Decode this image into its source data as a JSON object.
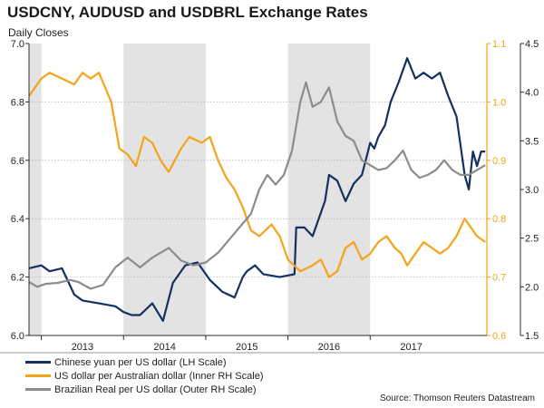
{
  "header": {
    "title": "USDCNY, AUDUSD and USDBRL Exchange Rates",
    "subtitle": "Daily Closes"
  },
  "source": "Source: Thomson Reuters Datastream",
  "colors": {
    "cny": "#14305e",
    "aud": "#f5a31a",
    "brl": "#8c8c8c",
    "shade": "#e3e3e3",
    "axis": "#2b2b2b",
    "right_inner_axis": "#f5a31a",
    "right_outer_axis": "#2b2b2b"
  },
  "chart_data": {
    "type": "line",
    "title": "USDCNY, AUDUSD and USDBRL Exchange Rates",
    "subtitle": "Daily Closes",
    "x_range": [
      2012.35,
      2017.92
    ],
    "x_ticks": [
      {
        "label": "2013",
        "at": 2013.0
      },
      {
        "label": "2014",
        "at": 2014.0
      },
      {
        "label": "2015",
        "at": 2015.0
      },
      {
        "label": "2016",
        "at": 2016.0
      },
      {
        "label": "2017",
        "at": 2017.0
      }
    ],
    "shaded_periods": [
      [
        2012.35,
        2012.5
      ],
      [
        2013.5,
        2014.5
      ],
      [
        2015.5,
        2016.5
      ]
    ],
    "axes": {
      "left": {
        "label": "LH Scale",
        "ylim": [
          6.0,
          7.0
        ],
        "ticks": [
          "6.0",
          "6.2",
          "6.4",
          "6.6",
          "6.8",
          "7.0"
        ]
      },
      "right_inner": {
        "label": "Inner RH Scale",
        "ylim": [
          0.6,
          1.1
        ],
        "ticks": [
          "0.6",
          "0.7",
          "0.8",
          "0.9",
          "1.0",
          "1.1"
        ]
      },
      "right_outer": {
        "label": "Outer RH Scale",
        "ylim": [
          1.5,
          4.5
        ],
        "ticks": [
          "1.5",
          "2.0",
          "2.5",
          "3.0",
          "3.5",
          "4.0",
          "4.5"
        ]
      }
    },
    "gridlines": true,
    "legend_position": "bottom-left",
    "series": [
      {
        "name": "Chinese yuan per US dollar (LH Scale)",
        "axis": "left",
        "color_key": "cny",
        "points": [
          [
            2012.35,
            6.23
          ],
          [
            2012.5,
            6.24
          ],
          [
            2012.6,
            6.22
          ],
          [
            2012.75,
            6.23
          ],
          [
            2012.9,
            6.14
          ],
          [
            2013.0,
            6.12
          ],
          [
            2013.2,
            6.11
          ],
          [
            2013.4,
            6.1
          ],
          [
            2013.5,
            6.08
          ],
          [
            2013.6,
            6.07
          ],
          [
            2013.7,
            6.07
          ],
          [
            2013.85,
            6.11
          ],
          [
            2013.98,
            6.05
          ],
          [
            2014.1,
            6.18
          ],
          [
            2014.25,
            6.24
          ],
          [
            2014.4,
            6.25
          ],
          [
            2014.55,
            6.19
          ],
          [
            2014.7,
            6.15
          ],
          [
            2014.85,
            6.13
          ],
          [
            2014.95,
            6.2
          ],
          [
            2015.0,
            6.22
          ],
          [
            2015.1,
            6.24
          ],
          [
            2015.2,
            6.21
          ],
          [
            2015.4,
            6.2
          ],
          [
            2015.58,
            6.21
          ],
          [
            2015.6,
            6.37
          ],
          [
            2015.7,
            6.37
          ],
          [
            2015.8,
            6.34
          ],
          [
            2015.95,
            6.46
          ],
          [
            2016.0,
            6.55
          ],
          [
            2016.1,
            6.53
          ],
          [
            2016.2,
            6.46
          ],
          [
            2016.3,
            6.52
          ],
          [
            2016.4,
            6.55
          ],
          [
            2016.5,
            6.66
          ],
          [
            2016.55,
            6.64
          ],
          [
            2016.6,
            6.68
          ],
          [
            2016.68,
            6.72
          ],
          [
            2016.75,
            6.8
          ],
          [
            2016.85,
            6.87
          ],
          [
            2016.95,
            6.95
          ],
          [
            2017.05,
            6.88
          ],
          [
            2017.15,
            6.9
          ],
          [
            2017.25,
            6.88
          ],
          [
            2017.35,
            6.9
          ],
          [
            2017.45,
            6.82
          ],
          [
            2017.55,
            6.75
          ],
          [
            2017.65,
            6.55
          ],
          [
            2017.7,
            6.5
          ],
          [
            2017.75,
            6.63
          ],
          [
            2017.8,
            6.58
          ],
          [
            2017.85,
            6.63
          ],
          [
            2017.9,
            6.63
          ]
        ]
      },
      {
        "name": "US dollar per Australian dollar (Inner RH Scale)",
        "axis": "right_inner",
        "color_key": "aud",
        "points": [
          [
            2012.35,
            1.01
          ],
          [
            2012.5,
            1.04
          ],
          [
            2012.6,
            1.05
          ],
          [
            2012.75,
            1.04
          ],
          [
            2012.9,
            1.03
          ],
          [
            2013.0,
            1.05
          ],
          [
            2013.1,
            1.04
          ],
          [
            2013.2,
            1.05
          ],
          [
            2013.35,
            1.0
          ],
          [
            2013.45,
            0.92
          ],
          [
            2013.55,
            0.91
          ],
          [
            2013.65,
            0.89
          ],
          [
            2013.75,
            0.94
          ],
          [
            2013.85,
            0.93
          ],
          [
            2013.95,
            0.9
          ],
          [
            2014.05,
            0.88
          ],
          [
            2014.2,
            0.92
          ],
          [
            2014.3,
            0.94
          ],
          [
            2014.45,
            0.93
          ],
          [
            2014.55,
            0.94
          ],
          [
            2014.65,
            0.9
          ],
          [
            2014.75,
            0.87
          ],
          [
            2014.85,
            0.85
          ],
          [
            2014.95,
            0.82
          ],
          [
            2015.05,
            0.78
          ],
          [
            2015.15,
            0.77
          ],
          [
            2015.3,
            0.79
          ],
          [
            2015.4,
            0.77
          ],
          [
            2015.5,
            0.73
          ],
          [
            2015.65,
            0.71
          ],
          [
            2015.8,
            0.72
          ],
          [
            2015.9,
            0.73
          ],
          [
            2016.0,
            0.7
          ],
          [
            2016.1,
            0.71
          ],
          [
            2016.2,
            0.75
          ],
          [
            2016.3,
            0.76
          ],
          [
            2016.4,
            0.73
          ],
          [
            2016.5,
            0.74
          ],
          [
            2016.6,
            0.76
          ],
          [
            2016.7,
            0.77
          ],
          [
            2016.8,
            0.75
          ],
          [
            2016.88,
            0.74
          ],
          [
            2016.95,
            0.72
          ],
          [
            2017.05,
            0.74
          ],
          [
            2017.15,
            0.76
          ],
          [
            2017.25,
            0.75
          ],
          [
            2017.35,
            0.74
          ],
          [
            2017.45,
            0.75
          ],
          [
            2017.55,
            0.77
          ],
          [
            2017.65,
            0.8
          ],
          [
            2017.7,
            0.79
          ],
          [
            2017.8,
            0.77
          ],
          [
            2017.9,
            0.76
          ]
        ]
      },
      {
        "name": "Brazilian Real per US dollar (Outer RH Scale)",
        "axis": "right_outer",
        "color_key": "brl",
        "points": [
          [
            2012.35,
            2.05
          ],
          [
            2012.45,
            2.0
          ],
          [
            2012.55,
            2.03
          ],
          [
            2012.7,
            2.04
          ],
          [
            2012.85,
            2.07
          ],
          [
            2012.95,
            2.05
          ],
          [
            2013.1,
            1.98
          ],
          [
            2013.25,
            2.02
          ],
          [
            2013.4,
            2.2
          ],
          [
            2013.55,
            2.3
          ],
          [
            2013.7,
            2.2
          ],
          [
            2013.85,
            2.3
          ],
          [
            2013.95,
            2.35
          ],
          [
            2014.05,
            2.4
          ],
          [
            2014.2,
            2.27
          ],
          [
            2014.35,
            2.22
          ],
          [
            2014.5,
            2.25
          ],
          [
            2014.65,
            2.35
          ],
          [
            2014.8,
            2.5
          ],
          [
            2014.95,
            2.65
          ],
          [
            2015.05,
            2.75
          ],
          [
            2015.15,
            3.0
          ],
          [
            2015.25,
            3.15
          ],
          [
            2015.35,
            3.05
          ],
          [
            2015.45,
            3.15
          ],
          [
            2015.55,
            3.4
          ],
          [
            2015.65,
            3.9
          ],
          [
            2015.72,
            4.1
          ],
          [
            2015.8,
            3.85
          ],
          [
            2015.9,
            3.9
          ],
          [
            2016.0,
            4.05
          ],
          [
            2016.1,
            3.7
          ],
          [
            2016.2,
            3.55
          ],
          [
            2016.3,
            3.5
          ],
          [
            2016.4,
            3.3
          ],
          [
            2016.5,
            3.25
          ],
          [
            2016.6,
            3.2
          ],
          [
            2016.7,
            3.22
          ],
          [
            2016.8,
            3.3
          ],
          [
            2016.9,
            3.4
          ],
          [
            2017.0,
            3.2
          ],
          [
            2017.1,
            3.12
          ],
          [
            2017.2,
            3.15
          ],
          [
            2017.3,
            3.2
          ],
          [
            2017.4,
            3.3
          ],
          [
            2017.5,
            3.2
          ],
          [
            2017.6,
            3.15
          ],
          [
            2017.7,
            3.15
          ],
          [
            2017.8,
            3.2
          ],
          [
            2017.9,
            3.25
          ]
        ]
      }
    ]
  }
}
